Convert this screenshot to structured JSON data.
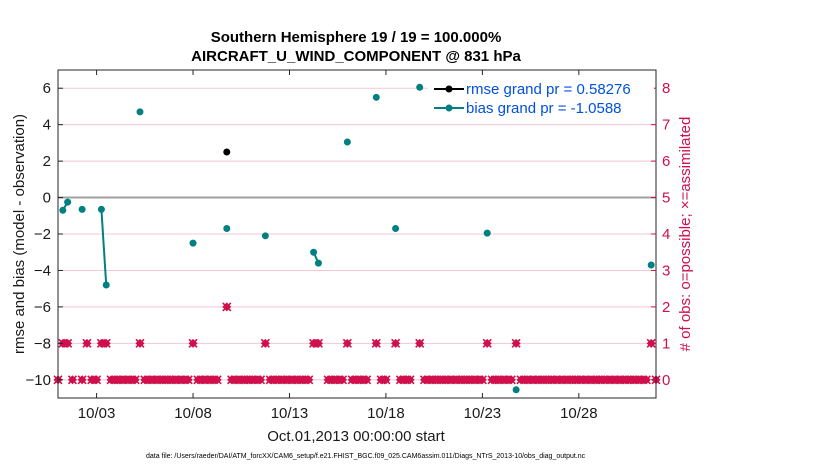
{
  "chart_data": {
    "type": "line",
    "title": "Southern Hemisphere 19 / 19 = 100.000%",
    "subtitle": "AIRCRAFT_U_WIND_COMPONENT @ 831 hPa",
    "xlabel": "Oct.01,2013 00:00:00 start",
    "ylabel": "rmse and bias (model - observation)",
    "ylabel_right": "# of obs: o=possible; ×=assimilated",
    "footer": "data file: /Users/raeder/DAI/ATM_forcXX/CAM6_setup/f.e21.FHIST_BGC.f09_025.CAM6assim.011/Diags_NTrS_2013-10/obs_diag_output.nc",
    "xlim": [
      1.0,
      32.0
    ],
    "ylim": [
      -11,
      7
    ],
    "ylim_right": [
      -0.5,
      8.5
    ],
    "yticks": [
      -10,
      -8,
      -6,
      -4,
      -2,
      0,
      2,
      4,
      6
    ],
    "yticks_labels": [
      "−10",
      "−8",
      "−6",
      "−4",
      "−2",
      "0",
      "2",
      "4",
      "6"
    ],
    "yticks_right": [
      0,
      1,
      2,
      3,
      4,
      5,
      6,
      7,
      8
    ],
    "yticks_right_labels": [
      "0",
      "1",
      "2",
      "3",
      "4",
      "5",
      "6",
      "7",
      "8"
    ],
    "xticks": [
      3,
      8,
      13,
      18,
      23,
      28
    ],
    "xticks_labels": [
      "10/03",
      "10/08",
      "10/13",
      "10/18",
      "10/23",
      "10/28"
    ],
    "zero_line": 0,
    "grid": true,
    "colors": {
      "rmse": "#000000",
      "bias": "#008080",
      "obs": "#d0104c",
      "legend_text": "#0050e0",
      "zero_line": "#a0a0a0",
      "grid": "#f0c8d4"
    },
    "series": [
      {
        "name": "rmse grand pr = 0.58276",
        "axis": "left",
        "points": [
          [
            9.75,
            2.5
          ]
        ]
      },
      {
        "name": "bias grand pr = -1.0588",
        "axis": "left",
        "segments": [
          [
            [
              1.25,
              -0.7
            ],
            [
              1.5,
              -0.25
            ]
          ],
          [
            [
              2.25,
              -0.65
            ]
          ],
          [
            [
              3.25,
              -0.65
            ],
            [
              3.5,
              -4.8
            ]
          ],
          [
            [
              5.25,
              4.7
            ]
          ],
          [
            [
              8.0,
              -2.5
            ]
          ],
          [
            [
              9.75,
              -1.7
            ]
          ],
          [
            [
              11.75,
              -2.1
            ]
          ],
          [
            [
              14.25,
              -3.0
            ],
            [
              14.5,
              -3.6
            ]
          ],
          [
            [
              16.0,
              3.05
            ]
          ],
          [
            [
              17.5,
              5.5
            ]
          ],
          [
            [
              18.5,
              -1.7
            ]
          ],
          [
            [
              19.75,
              6.05
            ]
          ],
          [
            [
              23.25,
              -1.95
            ]
          ],
          [
            [
              24.75,
              -10.55
            ]
          ],
          [
            [
              31.75,
              -3.7
            ]
          ]
        ]
      },
      {
        "name": "obs possible",
        "axis": "right",
        "x": [
          1.0,
          1.25,
          1.5,
          1.75,
          2.25,
          2.5,
          2.75,
          3.0,
          3.25,
          3.5,
          3.75,
          4.0,
          4.25,
          4.5,
          4.75,
          5.0,
          5.25,
          5.5,
          5.75,
          6.0,
          6.25,
          6.5,
          6.75,
          7.0,
          7.25,
          7.5,
          7.75,
          8.0,
          8.25,
          8.5,
          8.75,
          9.0,
          9.25,
          9.75,
          10.0,
          10.25,
          10.5,
          10.75,
          11.0,
          11.25,
          11.5,
          11.75,
          12.0,
          12.25,
          12.5,
          12.75,
          13.0,
          13.25,
          13.5,
          13.75,
          14.0,
          14.25,
          14.5,
          15.0,
          15.25,
          15.5,
          15.75,
          16.0,
          16.25,
          16.5,
          16.75,
          17.0,
          17.5,
          17.75,
          18.0,
          18.5,
          18.75,
          19.0,
          19.25,
          19.75,
          20.0,
          20.25,
          20.5,
          20.75,
          21.0,
          21.25,
          21.5,
          21.75,
          22.0,
          22.25,
          22.5,
          22.75,
          23.0,
          23.25,
          23.5,
          23.75,
          24.0,
          24.25,
          24.5,
          24.75,
          25.0,
          25.25,
          25.5,
          25.75,
          26.0,
          26.25,
          26.5,
          26.75,
          27.0,
          27.25,
          27.5,
          27.75,
          28.0,
          28.25,
          28.5,
          28.75,
          29.0,
          29.25,
          29.5,
          29.75,
          30.0,
          30.25,
          30.5,
          30.75,
          31.0,
          31.25,
          31.5,
          31.75,
          32.0
        ],
        "y": [
          0,
          1,
          1,
          0,
          0,
          1,
          0,
          0,
          1,
          1,
          0,
          0,
          0,
          0,
          0,
          0,
          1,
          0,
          0,
          0,
          0,
          0,
          0,
          0,
          0,
          0,
          0,
          1,
          0,
          0,
          0,
          0,
          0,
          2,
          0,
          0,
          0,
          0,
          0,
          0,
          0,
          1,
          0,
          0,
          0,
          0,
          0,
          0,
          0,
          0,
          0,
          1,
          1,
          0,
          0,
          0,
          0,
          1,
          0,
          0,
          0,
          0,
          1,
          0,
          0,
          1,
          0,
          0,
          0,
          1,
          0,
          0,
          0,
          0,
          0,
          0,
          0,
          0,
          0,
          0,
          0,
          0,
          0,
          1,
          0,
          0,
          0,
          0,
          0,
          1,
          0,
          0,
          0,
          0,
          0,
          0,
          0,
          0,
          0,
          0,
          0,
          0,
          0,
          0,
          0,
          0,
          0,
          0,
          0,
          0,
          0,
          0,
          0,
          0,
          0,
          0,
          0,
          1,
          0
        ]
      }
    ]
  }
}
